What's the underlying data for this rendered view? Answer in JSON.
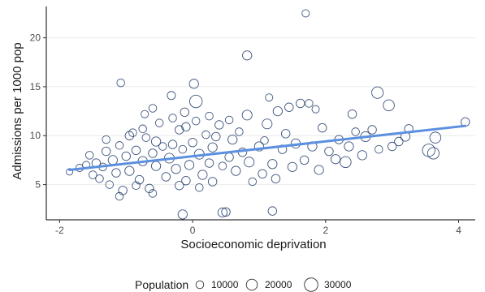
{
  "chart_data": {
    "type": "scatter",
    "title": "",
    "xlabel": "Socioeconomic deprivation",
    "ylabel": "Admissions per 1000 pop",
    "xlim": [
      -2.2,
      4.25
    ],
    "ylim": [
      1.4,
      23.2
    ],
    "x_ticks": [
      -2,
      0,
      2,
      4
    ],
    "y_ticks": [
      5,
      10,
      15,
      20
    ],
    "grid": "horizontal major lines",
    "legend": {
      "title": "Population",
      "placement": "bottom",
      "entries": [
        {
          "label": "10000",
          "size": 10000
        },
        {
          "label": "20000",
          "size": 20000
        },
        {
          "label": "30000",
          "size": 30000
        }
      ]
    },
    "trend_line": {
      "x": [
        -1.85,
        4.1
      ],
      "y": [
        6.5,
        11.0
      ],
      "color": "#5b8fe0"
    },
    "point_color": "#1f3a68",
    "points": [
      {
        "x": 1.7,
        "y": 22.5,
        "pop": 9000
      },
      {
        "x": 0.82,
        "y": 18.2,
        "pop": 14000
      },
      {
        "x": -1.08,
        "y": 15.4,
        "pop": 10000
      },
      {
        "x": 0.02,
        "y": 15.3,
        "pop": 14000
      },
      {
        "x": -0.32,
        "y": 14.1,
        "pop": 11000
      },
      {
        "x": 0.05,
        "y": 13.5,
        "pop": 26000
      },
      {
        "x": 1.15,
        "y": 13.9,
        "pop": 9000
      },
      {
        "x": 2.78,
        "y": 14.4,
        "pop": 22000
      },
      {
        "x": 2.95,
        "y": 13.1,
        "pop": 20000
      },
      {
        "x": 1.62,
        "y": 13.3,
        "pop": 12000
      },
      {
        "x": 1.75,
        "y": 13.3,
        "pop": 10000
      },
      {
        "x": 1.45,
        "y": 12.9,
        "pop": 12000
      },
      {
        "x": 1.85,
        "y": 12.7,
        "pop": 9000
      },
      {
        "x": 1.28,
        "y": 12.5,
        "pop": 14000
      },
      {
        "x": -0.6,
        "y": 12.8,
        "pop": 10000
      },
      {
        "x": -0.72,
        "y": 12.2,
        "pop": 9000
      },
      {
        "x": -0.12,
        "y": 12.4,
        "pop": 12000
      },
      {
        "x": 0.82,
        "y": 12.1,
        "pop": 16000
      },
      {
        "x": 2.4,
        "y": 12.2,
        "pop": 12000
      },
      {
        "x": 4.1,
        "y": 11.4,
        "pop": 12000
      },
      {
        "x": 3.65,
        "y": 9.8,
        "pop": 20000
      },
      {
        "x": 3.55,
        "y": 8.5,
        "pop": 26000
      },
      {
        "x": 3.62,
        "y": 8.2,
        "pop": 22000
      },
      {
        "x": 3.25,
        "y": 10.7,
        "pop": 12000
      },
      {
        "x": 3.2,
        "y": 9.9,
        "pop": 14000
      },
      {
        "x": 3.1,
        "y": 9.4,
        "pop": 12000
      },
      {
        "x": 2.8,
        "y": 8.6,
        "pop": 10000
      },
      {
        "x": 2.6,
        "y": 9.9,
        "pop": 16000
      },
      {
        "x": 2.55,
        "y": 8.0,
        "pop": 14000
      },
      {
        "x": 2.45,
        "y": 10.4,
        "pop": 10000
      },
      {
        "x": 2.3,
        "y": 7.3,
        "pop": 20000
      },
      {
        "x": 2.15,
        "y": 7.6,
        "pop": 14000
      },
      {
        "x": 2.2,
        "y": 9.6,
        "pop": 12000
      },
      {
        "x": 1.9,
        "y": 6.5,
        "pop": 14000
      },
      {
        "x": 1.68,
        "y": 7.5,
        "pop": 12000
      },
      {
        "x": 1.95,
        "y": 10.8,
        "pop": 12000
      },
      {
        "x": 1.55,
        "y": 9.2,
        "pop": 14000
      },
      {
        "x": 1.35,
        "y": 8.6,
        "pop": 12000
      },
      {
        "x": 1.2,
        "y": 7.1,
        "pop": 14000
      },
      {
        "x": 1.12,
        "y": 11.2,
        "pop": 16000
      },
      {
        "x": 1.08,
        "y": 9.5,
        "pop": 10000
      },
      {
        "x": 1.05,
        "y": 6.1,
        "pop": 12000
      },
      {
        "x": 0.9,
        "y": 5.3,
        "pop": 10000
      },
      {
        "x": 0.75,
        "y": 8.3,
        "pop": 12000
      },
      {
        "x": 0.7,
        "y": 10.4,
        "pop": 10000
      },
      {
        "x": 0.6,
        "y": 9.6,
        "pop": 14000
      },
      {
        "x": 0.55,
        "y": 7.8,
        "pop": 12000
      },
      {
        "x": 0.45,
        "y": 6.9,
        "pop": 10000
      },
      {
        "x": 0.4,
        "y": 11.1,
        "pop": 12000
      },
      {
        "x": 0.3,
        "y": 8.8,
        "pop": 14000
      },
      {
        "x": 0.25,
        "y": 7.2,
        "pop": 12000
      },
      {
        "x": 0.2,
        "y": 10.1,
        "pop": 10000
      },
      {
        "x": 0.15,
        "y": 6.0,
        "pop": 14000
      },
      {
        "x": 0.1,
        "y": 8.1,
        "pop": 16000
      },
      {
        "x": 0.05,
        "y": 11.5,
        "pop": 10000
      },
      {
        "x": 0.0,
        "y": 9.3,
        "pop": 12000
      },
      {
        "x": -0.05,
        "y": 7.0,
        "pop": 14000
      },
      {
        "x": -0.1,
        "y": 5.4,
        "pop": 12000
      },
      {
        "x": -0.15,
        "y": 8.6,
        "pop": 10000
      },
      {
        "x": -0.2,
        "y": 10.6,
        "pop": 12000
      },
      {
        "x": -0.25,
        "y": 6.6,
        "pop": 14000
      },
      {
        "x": -0.3,
        "y": 9.1,
        "pop": 12000
      },
      {
        "x": -0.35,
        "y": 7.7,
        "pop": 16000
      },
      {
        "x": -0.4,
        "y": 5.8,
        "pop": 12000
      },
      {
        "x": -0.45,
        "y": 8.9,
        "pop": 10000
      },
      {
        "x": -0.5,
        "y": 11.3,
        "pop": 10000
      },
      {
        "x": -0.55,
        "y": 6.9,
        "pop": 14000
      },
      {
        "x": -0.6,
        "y": 8.2,
        "pop": 12000
      },
      {
        "x": -0.65,
        "y": 4.6,
        "pop": 12000
      },
      {
        "x": -0.7,
        "y": 9.8,
        "pop": 10000
      },
      {
        "x": -0.75,
        "y": 7.4,
        "pop": 14000
      },
      {
        "x": -0.8,
        "y": 5.5,
        "pop": 12000
      },
      {
        "x": -0.85,
        "y": 8.5,
        "pop": 12000
      },
      {
        "x": -0.9,
        "y": 10.3,
        "pop": 10000
      },
      {
        "x": -0.95,
        "y": 6.4,
        "pop": 14000
      },
      {
        "x": -1.0,
        "y": 7.9,
        "pop": 12000
      },
      {
        "x": -1.05,
        "y": 4.4,
        "pop": 12000
      },
      {
        "x": -1.1,
        "y": 9.0,
        "pop": 10000
      },
      {
        "x": -1.15,
        "y": 6.2,
        "pop": 12000
      },
      {
        "x": -1.2,
        "y": 7.5,
        "pop": 14000
      },
      {
        "x": -1.25,
        "y": 5.0,
        "pop": 10000
      },
      {
        "x": -1.3,
        "y": 8.4,
        "pop": 12000
      },
      {
        "x": -1.35,
        "y": 6.8,
        "pop": 10000
      },
      {
        "x": -1.4,
        "y": 5.6,
        "pop": 10000
      },
      {
        "x": -1.45,
        "y": 7.2,
        "pop": 12000
      },
      {
        "x": -1.5,
        "y": 6.0,
        "pop": 10000
      },
      {
        "x": -1.55,
        "y": 8.0,
        "pop": 10000
      },
      {
        "x": -1.6,
        "y": 7.0,
        "pop": 9000
      },
      {
        "x": -1.7,
        "y": 6.7,
        "pop": 9000
      },
      {
        "x": -1.85,
        "y": 6.3,
        "pop": 7000
      },
      {
        "x": -1.1,
        "y": 3.8,
        "pop": 10000
      },
      {
        "x": -0.2,
        "y": 4.9,
        "pop": 12000
      },
      {
        "x": 0.1,
        "y": 4.7,
        "pop": 10000
      },
      {
        "x": -0.15,
        "y": 1.95,
        "pop": 14000
      },
      {
        "x": 0.45,
        "y": 2.15,
        "pop": 14000
      },
      {
        "x": 0.5,
        "y": 2.2,
        "pop": 12000
      },
      {
        "x": 1.2,
        "y": 2.3,
        "pop": 12000
      },
      {
        "x": -0.1,
        "y": 10.9,
        "pop": 12000
      },
      {
        "x": 0.35,
        "y": 9.9,
        "pop": 12000
      },
      {
        "x": -0.55,
        "y": 9.4,
        "pop": 14000
      },
      {
        "x": 0.65,
        "y": 6.4,
        "pop": 14000
      },
      {
        "x": 1.4,
        "y": 10.2,
        "pop": 12000
      },
      {
        "x": 1.8,
        "y": 8.9,
        "pop": 14000
      },
      {
        "x": 2.05,
        "y": 8.4,
        "pop": 12000
      },
      {
        "x": 2.7,
        "y": 10.6,
        "pop": 12000
      },
      {
        "x": 1.0,
        "y": 8.9,
        "pop": 14000
      },
      {
        "x": -0.75,
        "y": 10.7,
        "pop": 10000
      },
      {
        "x": -0.3,
        "y": 11.8,
        "pop": 10000
      },
      {
        "x": 0.25,
        "y": 12.0,
        "pop": 10000
      },
      {
        "x": 0.55,
        "y": 11.6,
        "pop": 10000
      },
      {
        "x": -1.3,
        "y": 9.6,
        "pop": 10000
      },
      {
        "x": -0.95,
        "y": 10.0,
        "pop": 12000
      },
      {
        "x": 0.85,
        "y": 7.3,
        "pop": 16000
      },
      {
        "x": 1.5,
        "y": 6.8,
        "pop": 14000
      },
      {
        "x": 2.35,
        "y": 8.9,
        "pop": 14000
      },
      {
        "x": 3.0,
        "y": 8.9,
        "pop": 12000
      },
      {
        "x": 1.25,
        "y": 5.6,
        "pop": 12000
      },
      {
        "x": 0.3,
        "y": 5.3,
        "pop": 12000
      },
      {
        "x": -0.6,
        "y": 4.1,
        "pop": 10000
      },
      {
        "x": -0.85,
        "y": 4.9,
        "pop": 10000
      }
    ]
  }
}
